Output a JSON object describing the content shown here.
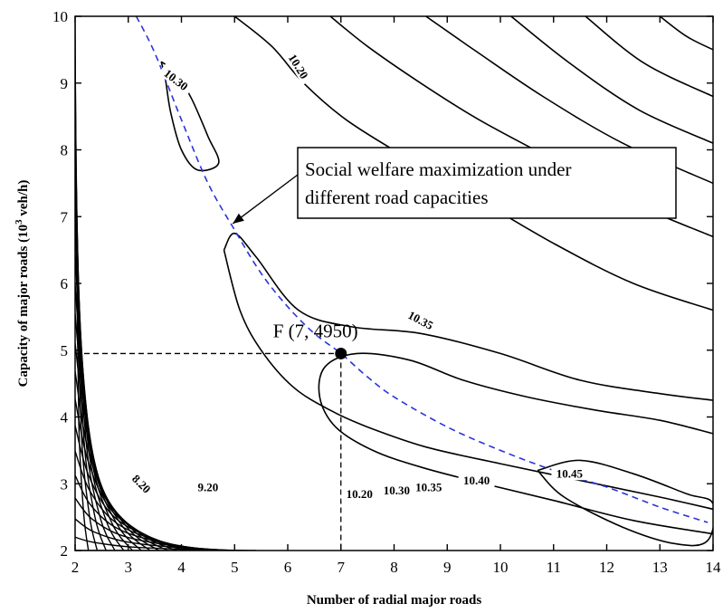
{
  "chart_data": {
    "type": "contour",
    "xlabel": "Number of radial major roads",
    "ylabel_main": "Capacity of major roads (10",
    "ylabel_sup": "3",
    "ylabel_tail": " veh/h)",
    "xlim": [
      2,
      14
    ],
    "ylim": [
      2,
      10
    ],
    "x_ticks": [
      "2",
      "3",
      "4",
      "5",
      "6",
      "7",
      "8",
      "9",
      "10",
      "11",
      "12",
      "13",
      "14"
    ],
    "y_ticks": [
      "2",
      "3",
      "4",
      "5",
      "6",
      "7",
      "8",
      "9",
      "10"
    ],
    "contour_labels": [
      {
        "text": "10.30",
        "x": 3.9,
        "y": 9.05,
        "angle": 38
      },
      {
        "text": "10.20",
        "x": 6.2,
        "y": 9.25,
        "angle": 58
      },
      {
        "text": "10.35",
        "x": 8.5,
        "y": 5.45,
        "angle": 28
      },
      {
        "text": "8.20",
        "x": 3.25,
        "y": 3.0,
        "angle": 45
      },
      {
        "text": "9.20",
        "x": 4.5,
        "y": 2.95,
        "angle": 0
      },
      {
        "text": "10.20",
        "x": 7.35,
        "y": 2.85,
        "angle": 0
      },
      {
        "text": "10.30",
        "x": 8.05,
        "y": 2.9,
        "angle": 0
      },
      {
        "text": "10.35",
        "x": 8.65,
        "y": 2.95,
        "angle": 0
      },
      {
        "text": "10.40",
        "x": 9.55,
        "y": 3.05,
        "angle": 0
      },
      {
        "text": "10.45",
        "x": 11.3,
        "y": 3.15,
        "angle": 0
      }
    ],
    "welfare_curve": [
      [
        3.15,
        10
      ],
      [
        3.5,
        9.45
      ],
      [
        4.0,
        8.45
      ],
      [
        4.5,
        7.5
      ],
      [
        5.0,
        6.8
      ],
      [
        5.5,
        6.15
      ],
      [
        6.0,
        5.65
      ],
      [
        6.5,
        5.25
      ],
      [
        7.0,
        4.95
      ],
      [
        7.5,
        4.6
      ],
      [
        8.0,
        4.3
      ],
      [
        9.0,
        3.85
      ],
      [
        10.0,
        3.5
      ],
      [
        11.0,
        3.2
      ],
      [
        12.0,
        2.95
      ],
      [
        13.0,
        2.65
      ],
      [
        13.9,
        2.42
      ]
    ],
    "optimum_point": {
      "label": "F (7, 4950)",
      "x": 7,
      "y": 4.95
    },
    "annotation": {
      "line1": "Social welfare maximization under",
      "line2": "different road capacities",
      "arrow_to": [
        5.0,
        6.95
      ]
    },
    "contours": [
      {
        "level": "10.30",
        "points": [
          [
            3.62,
            9.32
          ],
          [
            3.7,
            9.05
          ],
          [
            3.8,
            8.55
          ],
          [
            4.0,
            8.0
          ],
          [
            4.3,
            7.7
          ],
          [
            4.7,
            7.8
          ],
          [
            4.5,
            8.2
          ],
          [
            4.2,
            8.75
          ],
          [
            3.9,
            9.15
          ],
          [
            3.62,
            9.32
          ]
        ]
      },
      {
        "level": "10.20",
        "points": [
          [
            5.0,
            10
          ],
          [
            5.7,
            9.55
          ],
          [
            6.3,
            9.0
          ],
          [
            7.1,
            8.45
          ],
          [
            8.2,
            7.9
          ],
          [
            9.5,
            7.3
          ],
          [
            11.0,
            6.6
          ],
          [
            12.5,
            6.0
          ],
          [
            14.0,
            5.6
          ]
        ]
      },
      {
        "level": "",
        "points": [
          [
            6.8,
            10
          ],
          [
            7.5,
            9.55
          ],
          [
            8.5,
            9.0
          ],
          [
            9.6,
            8.45
          ],
          [
            11.0,
            7.85
          ],
          [
            12.5,
            7.2
          ],
          [
            14.0,
            6.7
          ]
        ]
      },
      {
        "level": "",
        "points": [
          [
            8.6,
            10
          ],
          [
            9.5,
            9.5
          ],
          [
            10.8,
            8.8
          ],
          [
            12.3,
            8.1
          ],
          [
            14.0,
            7.5
          ]
        ]
      },
      {
        "level": "",
        "points": [
          [
            10.2,
            10
          ],
          [
            11.3,
            9.3
          ],
          [
            12.6,
            8.6
          ],
          [
            14.0,
            8.1
          ]
        ]
      },
      {
        "level": "",
        "points": [
          [
            11.6,
            10
          ],
          [
            12.7,
            9.3
          ],
          [
            14.0,
            8.8
          ]
        ]
      },
      {
        "level": "",
        "points": [
          [
            13.0,
            10
          ],
          [
            13.5,
            9.7
          ],
          [
            14.0,
            9.5
          ]
        ]
      },
      {
        "level": "10.35",
        "points": [
          [
            4.8,
            6.5
          ],
          [
            5.0,
            6.75
          ],
          [
            5.4,
            6.4
          ],
          [
            6.2,
            5.6
          ],
          [
            7.2,
            5.35
          ],
          [
            8.5,
            5.25
          ],
          [
            10.0,
            4.95
          ],
          [
            11.5,
            4.55
          ],
          [
            13.0,
            4.35
          ],
          [
            14.0,
            4.25
          ]
        ]
      },
      {
        "level": "",
        "points": [
          [
            4.8,
            6.5
          ],
          [
            5.1,
            5.6
          ],
          [
            5.5,
            5.0
          ],
          [
            6.1,
            4.45
          ],
          [
            6.8,
            4.1
          ],
          [
            7.5,
            3.85
          ],
          [
            8.6,
            3.55
          ],
          [
            10.0,
            3.3
          ],
          [
            11.5,
            3.05
          ],
          [
            13.0,
            2.8
          ],
          [
            14.0,
            2.62
          ]
        ]
      },
      {
        "level": "10.40",
        "points": [
          [
            14.0,
            3.75
          ],
          [
            13.0,
            3.95
          ],
          [
            11.8,
            4.1
          ],
          [
            10.5,
            4.3
          ],
          [
            9.3,
            4.55
          ],
          [
            8.3,
            4.85
          ],
          [
            7.3,
            4.95
          ],
          [
            6.7,
            4.75
          ],
          [
            6.6,
            4.3
          ],
          [
            6.9,
            3.85
          ],
          [
            7.6,
            3.5
          ],
          [
            8.5,
            3.25
          ],
          [
            9.7,
            3.0
          ],
          [
            11.0,
            2.75
          ],
          [
            12.5,
            2.45
          ],
          [
            14.0,
            2.25
          ]
        ]
      },
      {
        "level": "10.45",
        "points": [
          [
            10.7,
            3.2
          ],
          [
            11.5,
            3.35
          ],
          [
            12.5,
            3.15
          ],
          [
            13.5,
            2.85
          ],
          [
            14.0,
            2.7
          ],
          [
            13.9,
            2.15
          ],
          [
            13.3,
            2.1
          ],
          [
            12.3,
            2.35
          ],
          [
            11.2,
            2.8
          ],
          [
            10.7,
            3.2
          ]
        ]
      }
    ],
    "steep_contour_count": 20
  }
}
